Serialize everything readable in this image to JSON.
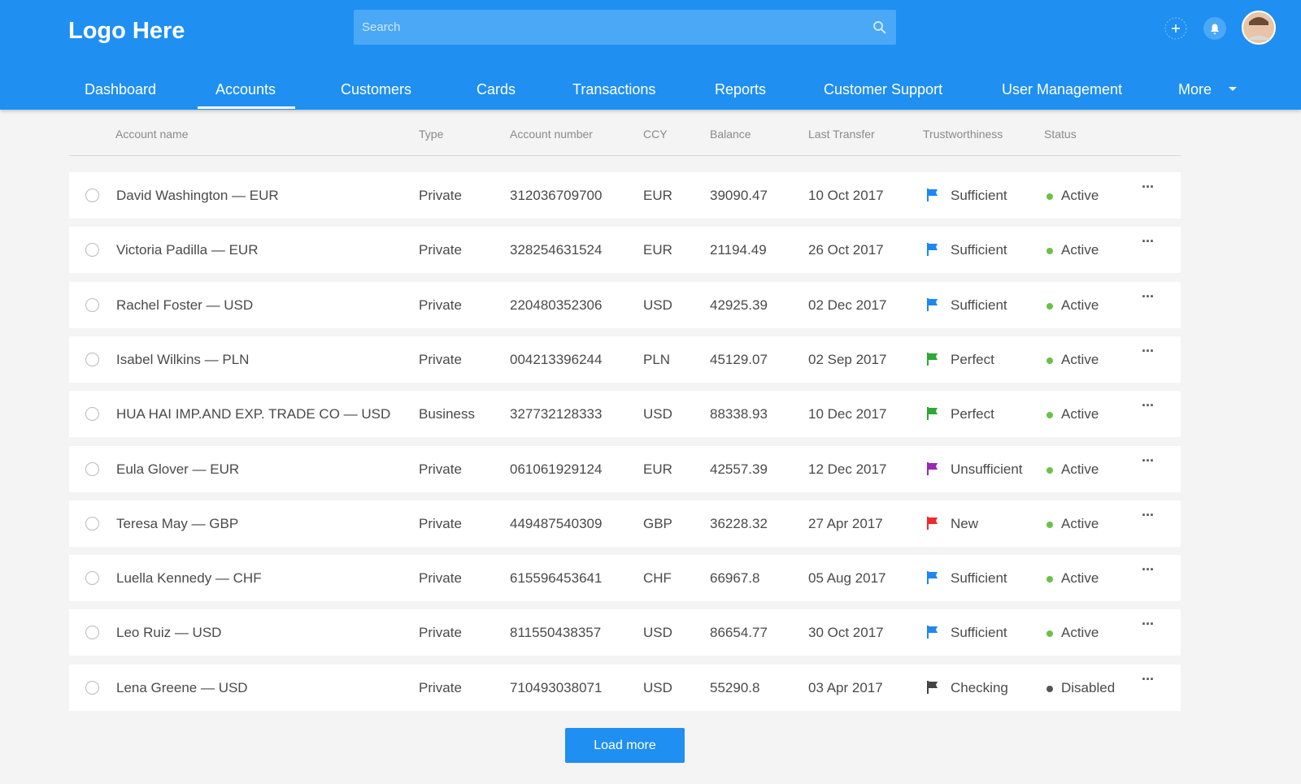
{
  "header": {
    "logo": "Logo Here",
    "search_placeholder": "Search"
  },
  "nav": {
    "items": [
      "Dashboard",
      "Accounts",
      "Customers",
      "Cards",
      "Transactions",
      "Reports",
      "Customer Support",
      "User Management",
      "More"
    ],
    "active": 1
  },
  "table": {
    "columns": [
      "Account name",
      "Type",
      "Account number",
      "CCY",
      "Balance",
      "Last Transfer",
      "Trustworthiness",
      "Status"
    ],
    "rows": [
      [
        "David Washington — EUR",
        "Private",
        "312036709700",
        "EUR",
        "39090.47",
        "10 Oct 2017",
        "Sufficient",
        "Active"
      ],
      [
        "Victoria Padilla — EUR",
        "Private",
        "328254631524",
        "EUR",
        "21194.49",
        "26 Oct 2017",
        "Sufficient",
        "Active"
      ],
      [
        "Rachel Foster — USD",
        "Private",
        "220480352306",
        "USD",
        "42925.39",
        "02 Dec 2017",
        "Sufficient",
        "Active"
      ],
      [
        "Isabel Wilkins — PLN",
        "Private",
        "004213396244",
        "PLN",
        "45129.07",
        "02 Sep 2017",
        "Perfect",
        "Active"
      ],
      [
        "HUA HAI IMP.AND EXP. TRADE CO — USD",
        "Business",
        "327732128333",
        "USD",
        "88338.93",
        "10 Dec 2017",
        "Perfect",
        "Active"
      ],
      [
        "Eula Glover — EUR",
        "Private",
        "061061929124",
        "EUR",
        "42557.39",
        "12 Dec 2017",
        "Unsufficient",
        "Active"
      ],
      [
        "Teresa May — GBP",
        "Private",
        "449487540309",
        "GBP",
        "36228.32",
        "27 Apr 2017",
        "New",
        "Active"
      ],
      [
        "Luella Kennedy — CHF",
        "Private",
        "615596453641",
        "CHF",
        "66967.8",
        "05 Aug 2017",
        "Sufficient",
        "Active"
      ],
      [
        "Leo Ruiz — USD",
        "Private",
        "811550438357",
        "USD",
        "86654.77",
        "30 Oct 2017",
        "Sufficient",
        "Active"
      ],
      [
        "Lena Greene — USD",
        "Private",
        "710493038071",
        "USD",
        "55290.8",
        "03 Apr 2017",
        "Checking",
        "Disabled"
      ]
    ],
    "flag_colors": [
      "#1e88f0",
      "#1e88f0",
      "#1e88f0",
      "#2ea836",
      "#2ea836",
      "#9c27b0",
      "#f02a2a",
      "#1e88f0",
      "#1e88f0",
      "#444444"
    ],
    "status_colors": [
      "#6cc04a",
      "#6cc04a",
      "#6cc04a",
      "#6cc04a",
      "#6cc04a",
      "#6cc04a",
      "#6cc04a",
      "#6cc04a",
      "#6cc04a",
      "#555555"
    ]
  },
  "button": "Load more"
}
